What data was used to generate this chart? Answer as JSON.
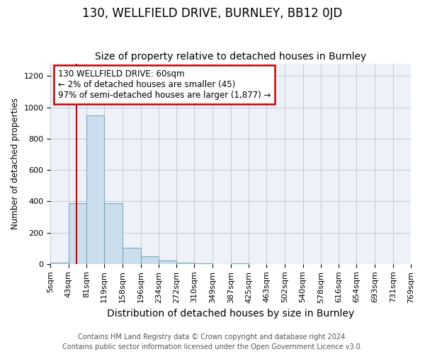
{
  "title": "130, WELLFIELD DRIVE, BURNLEY, BB12 0JD",
  "subtitle": "Size of property relative to detached houses in Burnley",
  "xlabel": "Distribution of detached houses by size in Burnley",
  "ylabel": "Number of detached properties",
  "footer_line1": "Contains HM Land Registry data © Crown copyright and database right 2024.",
  "footer_line2": "Contains public sector information licensed under the Open Government Licence v3.0.",
  "bins": [
    5,
    43,
    81,
    119,
    158,
    196,
    234,
    272,
    310,
    349,
    387,
    425,
    463,
    502,
    540,
    578,
    616,
    654,
    693,
    731,
    769
  ],
  "bin_labels": [
    "5sqm",
    "43sqm",
    "81sqm",
    "119sqm",
    "158sqm",
    "196sqm",
    "234sqm",
    "272sqm",
    "310sqm",
    "349sqm",
    "387sqm",
    "425sqm",
    "463sqm",
    "502sqm",
    "540sqm",
    "578sqm",
    "616sqm",
    "654sqm",
    "693sqm",
    "731sqm",
    "769sqm"
  ],
  "bar_heights": [
    10,
    390,
    950,
    390,
    105,
    48,
    20,
    10,
    5,
    0,
    5,
    0,
    0,
    0,
    0,
    0,
    0,
    0,
    0,
    0
  ],
  "bar_color": "#ccdded",
  "bar_edge_color": "#7aaabb",
  "ylim": [
    0,
    1280
  ],
  "yticks": [
    0,
    200,
    400,
    600,
    800,
    1000,
    1200
  ],
  "red_line_x": 60,
  "annotation_line1": "130 WELLFIELD DRIVE: 60sqm",
  "annotation_line2": "← 2% of detached houses are smaller (45)",
  "annotation_line3": "97% of semi-detached houses are larger (1,877) →",
  "annotation_box_color": "#ffffff",
  "annotation_box_edge": "#cc0000",
  "red_line_color": "#cc0000",
  "plot_bg_color": "#eef2f8",
  "grid_color": "#c0ccd8",
  "title_fontsize": 12,
  "subtitle_fontsize": 10,
  "ylabel_fontsize": 8.5,
  "xlabel_fontsize": 10,
  "tick_fontsize": 8,
  "footer_fontsize": 7
}
